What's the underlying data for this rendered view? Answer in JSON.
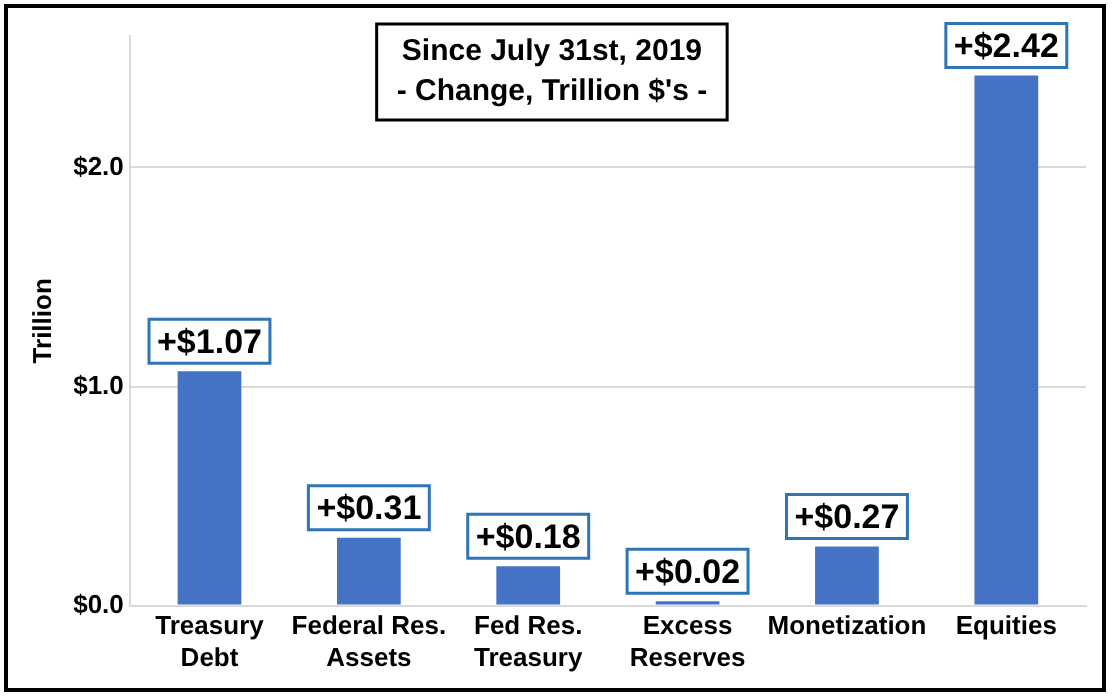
{
  "chart_data": {
    "type": "bar",
    "title": "Since July 31st, 2019",
    "subtitle": "- Change, Trillion $'s -",
    "ylabel": "Trillion",
    "categories": [
      "Treasury Debt",
      "Federal Res. Assets",
      "Fed Res. Treasury",
      "Excess Reserves",
      "Monetization",
      "Equities"
    ],
    "values": [
      1.07,
      0.31,
      0.18,
      0.02,
      0.27,
      2.42
    ],
    "value_labels": [
      "+$1.07",
      "+$0.31",
      "+$0.18",
      "+$0.02",
      "+$0.27",
      "+$2.42"
    ],
    "color": "#4472c4",
    "ylim": [
      0,
      2.6
    ],
    "yticks": [
      {
        "value": 0,
        "label": "$0.0"
      },
      {
        "value": 1,
        "label": "$1.0"
      },
      {
        "value": 2,
        "label": "$2.0"
      }
    ],
    "grid": "y",
    "legend": false
  }
}
